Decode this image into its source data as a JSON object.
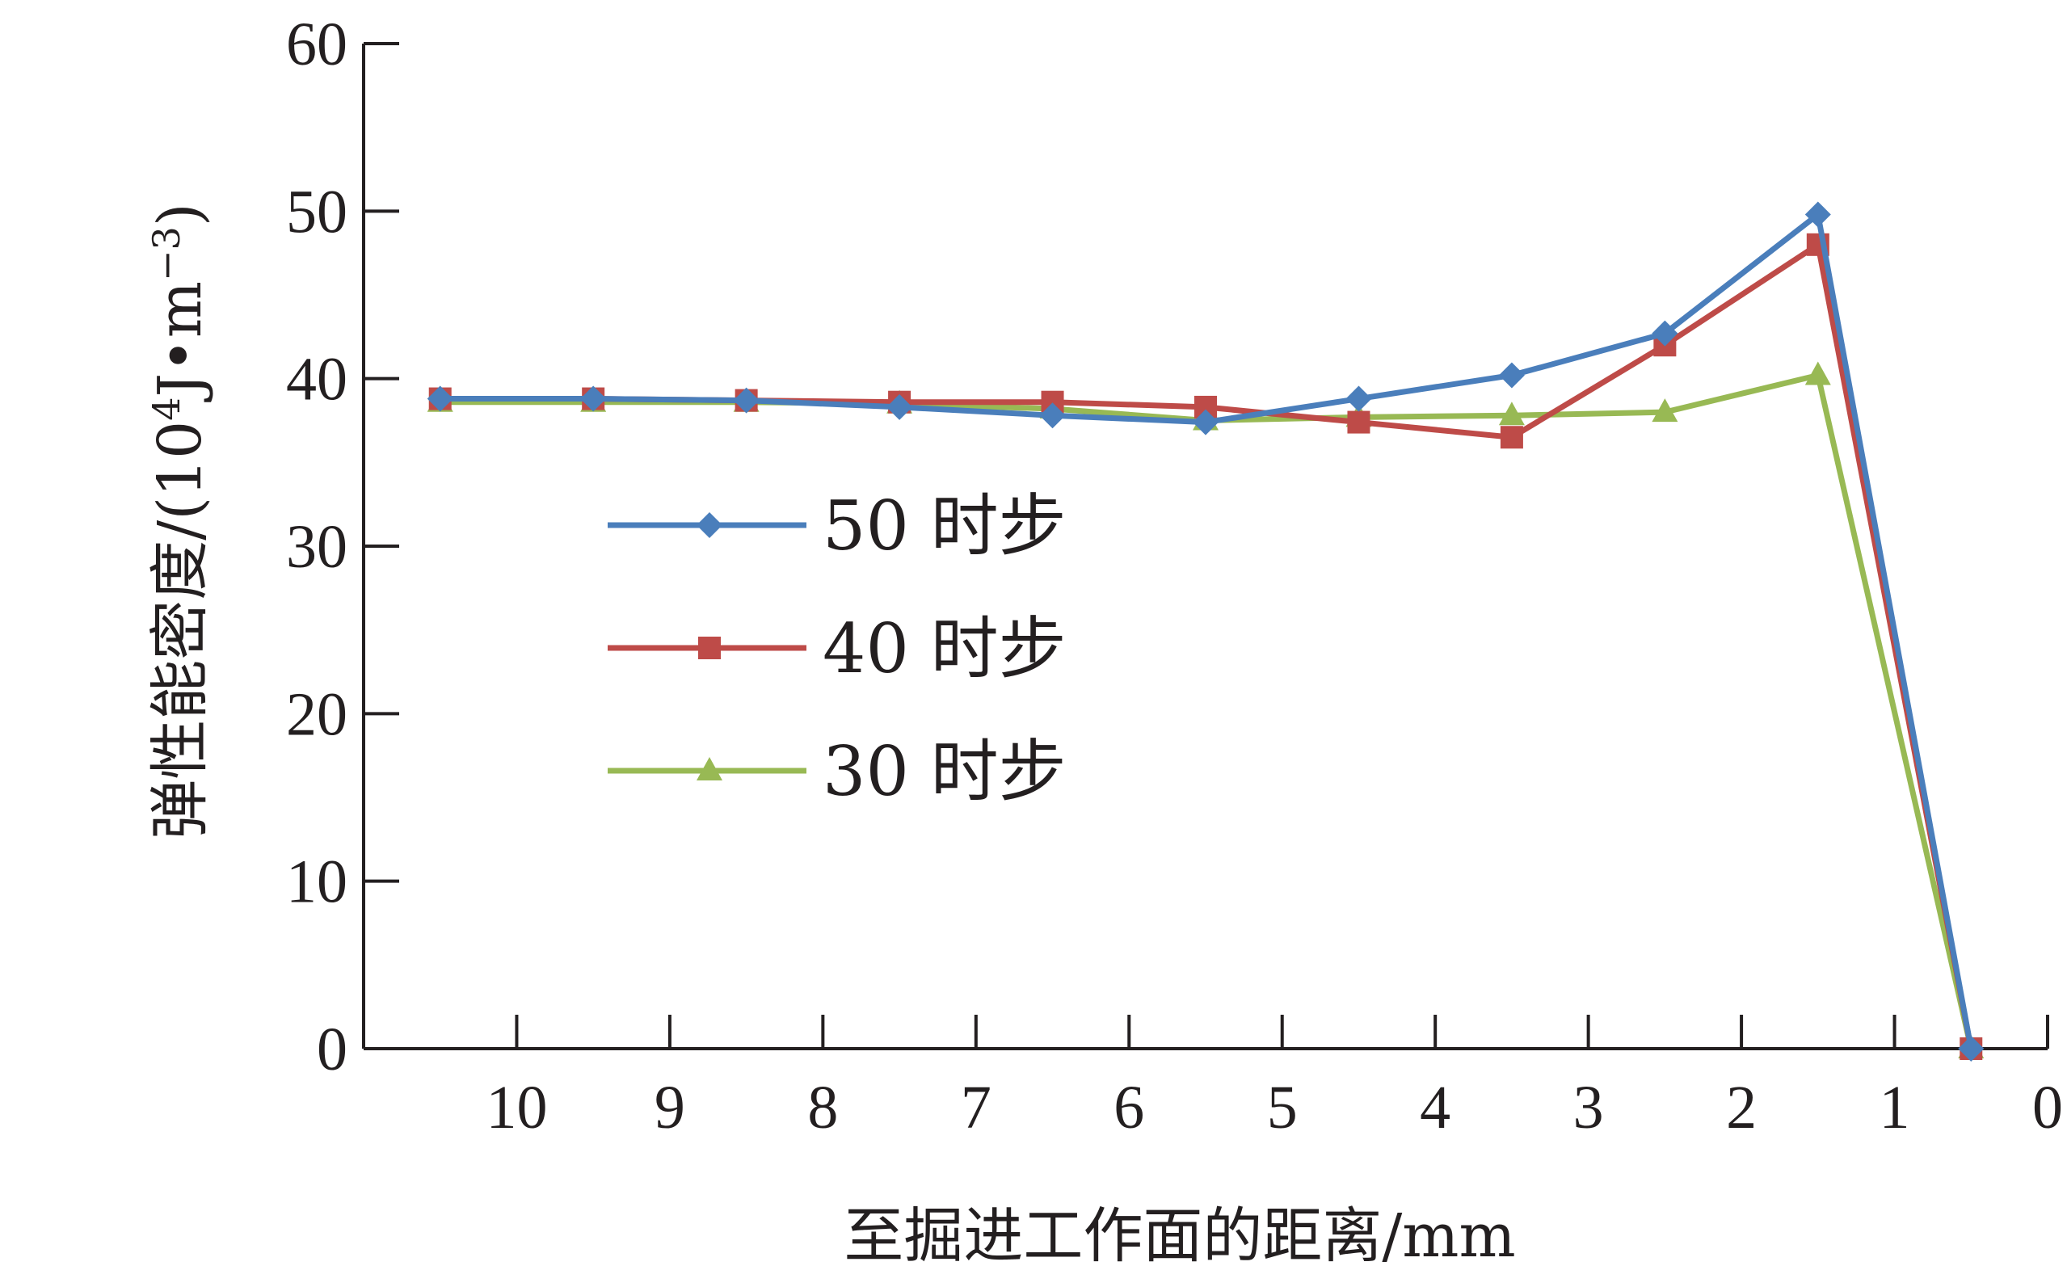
{
  "chart_data": {
    "type": "line",
    "xlabel": "至掘进工作面的距离/mm",
    "ylabel_main": "弹性能密度/(10",
    "ylabel_sup1": "4",
    "ylabel_mid": "J•m",
    "ylabel_sup2": "−3",
    "ylabel_end": ")",
    "xlim": [
      11,
      0
    ],
    "ylim": [
      0,
      60
    ],
    "x_ticks": [
      10,
      9,
      8,
      7,
      6,
      5,
      4,
      3,
      2,
      1,
      0
    ],
    "x_tick_labels": [
      "10",
      "9",
      "8",
      "7",
      "6",
      "5",
      "4",
      "3",
      "2",
      "1",
      "0"
    ],
    "y_ticks": [
      0,
      10,
      20,
      30,
      40,
      50,
      60
    ],
    "y_tick_labels": [
      "0",
      "10",
      "20",
      "30",
      "40",
      "50",
      "60"
    ],
    "x": [
      10.5,
      9.5,
      8.5,
      7.5,
      6.5,
      5.5,
      4.5,
      3.5,
      2.5,
      1.5,
      0.5
    ],
    "series": [
      {
        "name": "50 时步",
        "color": "#4a7ebb",
        "marker": "diamond",
        "values": [
          38.8,
          38.8,
          38.7,
          38.3,
          37.8,
          37.4,
          38.8,
          40.2,
          42.7,
          49.8,
          0.0
        ]
      },
      {
        "name": "40 时步",
        "color": "#be4b48",
        "marker": "square",
        "values": [
          38.8,
          38.8,
          38.7,
          38.6,
          38.6,
          38.3,
          37.4,
          36.5,
          42.0,
          48.0,
          0.0
        ]
      },
      {
        "name": "30 时步",
        "color": "#98b954",
        "marker": "triangle",
        "values": [
          38.6,
          38.6,
          38.6,
          38.5,
          38.2,
          37.5,
          37.7,
          37.8,
          38.0,
          40.2,
          0.0
        ]
      }
    ],
    "grid": false,
    "legend_position": "left-center"
  }
}
